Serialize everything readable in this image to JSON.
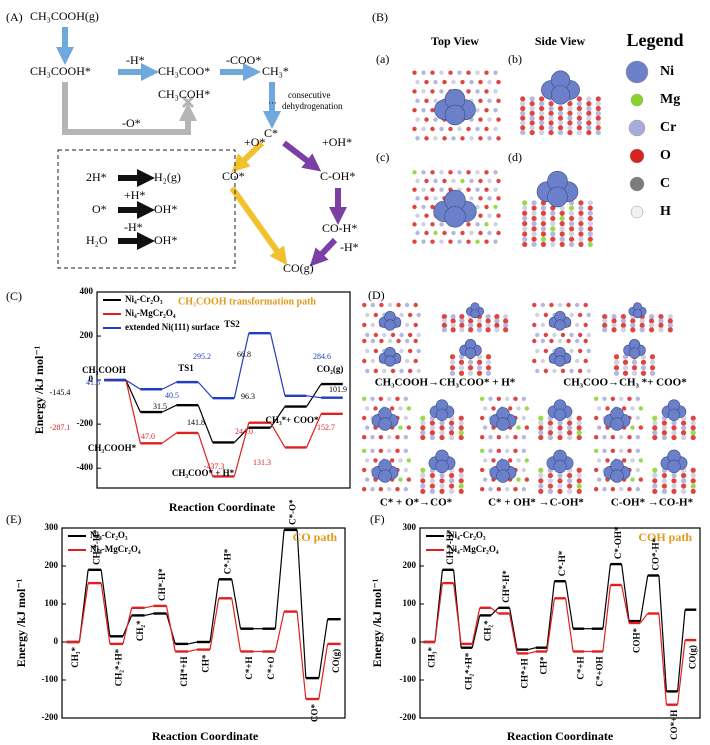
{
  "panel_a": {
    "label": "(A)",
    "nodes": [
      "CH₃COOH(g)",
      "CH₃COOH*",
      "CH₃COO*",
      "CH₃*",
      "CH₃COH*",
      "C*",
      "CO*",
      "C-OH*",
      "CO-H*",
      "CO(g)"
    ],
    "steps": [
      "-H*",
      "-COO*",
      "-O*",
      "consecutive",
      "dehydrogenation",
      "+O*",
      "+OH*",
      "-H*"
    ],
    "box": [
      {
        "left": "2H*",
        "right": "H₂(g)"
      },
      {
        "left": "O*",
        "over": "+H*",
        "right": "OH*"
      },
      {
        "left": "H₂O",
        "over": "-H*",
        "right": "OH*"
      }
    ]
  },
  "panel_b": {
    "label": "(B)",
    "views": [
      "Top View",
      "Side View"
    ],
    "subpanels": [
      "(a)",
      "(b)",
      "(c)",
      "(d)"
    ],
    "legend_title": "Legend",
    "legend": [
      {
        "name": "Ni",
        "color": "#6b80c9"
      },
      {
        "name": "Mg",
        "color": "#86d42a"
      },
      {
        "name": "Cr",
        "color": "#a7acd8"
      },
      {
        "name": "O",
        "color": "#d9231f"
      },
      {
        "name": "C",
        "color": "#7d7d7d"
      },
      {
        "name": "H",
        "color": "#f2f2f2"
      }
    ]
  },
  "panel_d": {
    "label": "(D)",
    "captions": [
      "CH₃COOH→CH₃COO* + H*",
      "CH₃COO→CH₃ *+ COO*",
      "C* + O*→CO*",
      "C* + OH* →C-OH*",
      "C-OH* →CO-H*"
    ]
  },
  "chart_data": [
    {
      "type": "profile",
      "panel_label": "(C)",
      "title": "CH₃COOH transformation path",
      "title_color": "#e39a1c",
      "ylabel": "Energy /kJ mol⁻¹",
      "xlabel": "Reaction Coordinate",
      "categories": [
        "CH₃COOH",
        "CH₃COOH*",
        "TS1",
        "CH₃COO* + H*",
        "TS2",
        "CH₃*+ COO*",
        "CO₂(g)"
      ],
      "series": [
        {
          "name": "Ni₄-Cr₂O₃",
          "color": "#000000",
          "values": [
            0,
            -145.4,
            -113.9,
            -283.0,
            -216.2,
            -120.0,
            -18.1
          ]
        },
        {
          "name": "Ni₄-MgCr₂O₄",
          "color": "#e02020",
          "values": [
            0,
            -287.1,
            -240.1,
            -437.3,
            -193.3,
            -306.0,
            -153.3
          ]
        },
        {
          "name": "extended Ni(111) surface",
          "color": "#1f3fbf",
          "values": [
            0,
            -41.6,
            -9.2,
            -82.0,
            213.2,
            -71.4,
            -80.0
          ]
        }
      ],
      "ylim": [
        -490,
        400
      ],
      "yticks": [
        -400,
        -200,
        0,
        200,
        400
      ],
      "annotations": [
        {
          "text": "-145.4",
          "color": "#000000"
        },
        {
          "text": "41.6",
          "color": "#1f3fbf"
        },
        {
          "text": "31.5",
          "color": "#000000"
        },
        {
          "text": "40.5",
          "color": "#1f3fbf"
        },
        {
          "text": "-287.1",
          "color": "#e02020"
        },
        {
          "text": "47.0",
          "color": "#e02020"
        },
        {
          "text": "141.8",
          "color": "#000000"
        },
        {
          "text": "295.2",
          "color": "#1f3fbf"
        },
        {
          "text": "66.8",
          "color": "#000000"
        },
        {
          "text": "96.3",
          "color": "#000000"
        },
        {
          "text": "-437.3",
          "color": "#e02020"
        },
        {
          "text": "244.0",
          "color": "#e02020"
        },
        {
          "text": "131.3",
          "color": "#e02020"
        },
        {
          "text": "284.6",
          "color": "#1f3fbf"
        },
        {
          "text": "152.7",
          "color": "#e02020"
        },
        {
          "text": "101.9",
          "color": "#000000"
        }
      ]
    },
    {
      "type": "profile",
      "panel_label": "(E)",
      "title": "CO path",
      "title_color": "#e39a1c",
      "ylabel": "Energy /kJ mol⁻¹",
      "xlabel": "Reaction Coordinate",
      "categories": [
        "CH₃*",
        "CH₂*-H*",
        "CH₂*+H*",
        "CH₂*",
        "CH*-H*",
        "CH*+H",
        "CH*",
        "C*-H*",
        "C*+H",
        "C*+O",
        "C*-O*",
        "CO*",
        "CO(g)"
      ],
      "series": [
        {
          "name": "Ni₄-Cr₂O₃",
          "color": "#000000",
          "values": [
            0,
            190,
            15,
            70,
            75,
            -5,
            0,
            165,
            35,
            35,
            295,
            -95,
            60
          ]
        },
        {
          "name": "Ni₄-MgCr₂O₄",
          "color": "#e02020",
          "values": [
            0,
            155,
            -5,
            90,
            95,
            -25,
            -20,
            115,
            -25,
            -25,
            80,
            -150,
            -5
          ]
        }
      ],
      "ylim": [
        -200,
        300
      ],
      "yticks": [
        -200,
        -100,
        0,
        100,
        200,
        300
      ]
    },
    {
      "type": "profile",
      "panel_label": "(F)",
      "title": "COH path",
      "title_color": "#e39a1c",
      "ylabel": "Energy /kJ mol⁻¹",
      "xlabel": "Reaction Coordinate",
      "categories": [
        "CH₃*",
        "CH₂*-H*",
        "CH₂*+H*",
        "CH₂*",
        "CH*-H*",
        "CH*+H",
        "CH*",
        "C*-H*",
        "C*+H",
        "C*+OH",
        "C*-OH*",
        "COH*",
        "CO*-H*",
        "CO*+H",
        "CO(g)"
      ],
      "series": [
        {
          "name": "Ni₄-Cr₂O₃",
          "color": "#000000",
          "values": [
            0,
            190,
            -15,
            70,
            90,
            -20,
            -15,
            160,
            35,
            35,
            205,
            55,
            175,
            -130,
            85
          ]
        },
        {
          "name": "Ni₄-MgCr₂O₄",
          "color": "#e02020",
          "values": [
            0,
            155,
            -5,
            90,
            75,
            -30,
            -25,
            115,
            -25,
            -25,
            150,
            50,
            75,
            -165,
            5
          ]
        }
      ],
      "ylim": [
        -200,
        300
      ],
      "yticks": [
        -200,
        -100,
        0,
        100,
        200,
        300
      ]
    }
  ]
}
